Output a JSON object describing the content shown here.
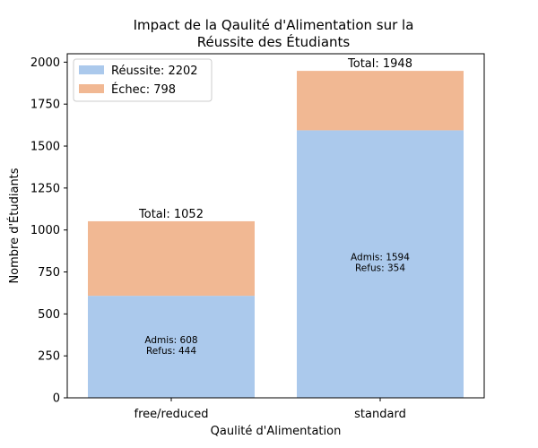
{
  "chart_data": {
    "type": "bar",
    "stacked": true,
    "title_lines": [
      "Impact de la Qaulité d'Alimentation sur la",
      "Réussite des Étudiants"
    ],
    "xlabel": "Qaulité d'Alimentation",
    "ylabel": "Nombre d'Étudiants",
    "categories": [
      "free/reduced",
      "standard"
    ],
    "ylim": [
      0,
      2050
    ],
    "yticks": [
      0,
      250,
      500,
      750,
      1000,
      1250,
      1500,
      1750,
      2000
    ],
    "series": [
      {
        "name": "Réussite: 2202",
        "values": [
          608,
          1594
        ],
        "color": "#abc9ec"
      },
      {
        "name": "Échec: 798",
        "values": [
          444,
          354
        ],
        "color": "#f1b893"
      }
    ],
    "totals": [
      "Total: 1052",
      "Total: 1948"
    ],
    "admis_labels": [
      "Admis: 608",
      "Admis: 1594"
    ],
    "refus_labels": [
      "Refus: 444",
      "Refus: 354"
    ],
    "legend_position": "top-left",
    "grid": false
  }
}
